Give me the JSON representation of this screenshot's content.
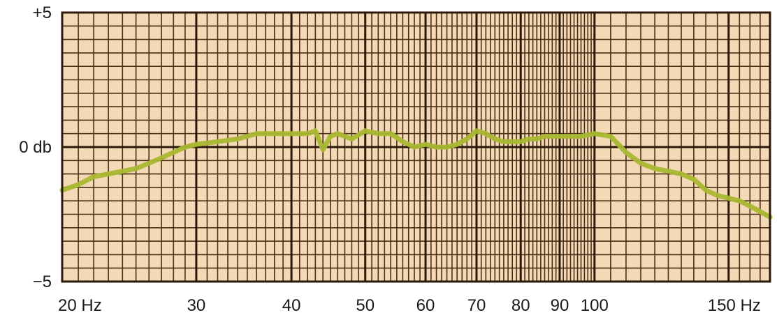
{
  "chart_data": {
    "type": "line",
    "title": "",
    "xlabel": "",
    "ylabel": "",
    "x_scale": "log",
    "xlim": [
      20,
      170
    ],
    "ylim": [
      -5,
      5
    ],
    "grid": true,
    "legend": "none",
    "x_tick_labels": [
      {
        "value": 20,
        "label": "20 Hz"
      },
      {
        "value": 30,
        "label": "30"
      },
      {
        "value": 40,
        "label": "40"
      },
      {
        "value": 50,
        "label": "50"
      },
      {
        "value": 60,
        "label": "60"
      },
      {
        "value": 70,
        "label": "70"
      },
      {
        "value": 80,
        "label": "80"
      },
      {
        "value": 90,
        "label": "90"
      },
      {
        "value": 100,
        "label": "100"
      },
      {
        "value": 150,
        "label": "150 Hz"
      }
    ],
    "y_tick_labels": [
      {
        "value": 5,
        "label": "+5"
      },
      {
        "value": 0,
        "label": "0 db"
      },
      {
        "value": -5,
        "label": "−5"
      }
    ],
    "series": [
      {
        "color": "#a9b832",
        "x": [
          20,
          21,
          22,
          23,
          24,
          25,
          26,
          27,
          28,
          29,
          30,
          32,
          34,
          36,
          38,
          40,
          42,
          43,
          44,
          45,
          46,
          48,
          50,
          52,
          54,
          56,
          58,
          60,
          62,
          64,
          66,
          68,
          70,
          72,
          74,
          76,
          78,
          80,
          82,
          84,
          86,
          88,
          90,
          93,
          96,
          100,
          105,
          110,
          115,
          120,
          125,
          130,
          135,
          140,
          145,
          150,
          155,
          160,
          165,
          170
        ],
        "y": [
          -1.6,
          -1.4,
          -1.1,
          -1.0,
          -0.9,
          -0.8,
          -0.6,
          -0.4,
          -0.2,
          0.0,
          0.1,
          0.2,
          0.3,
          0.5,
          0.5,
          0.5,
          0.5,
          0.6,
          -0.1,
          0.4,
          0.5,
          0.3,
          0.6,
          0.5,
          0.5,
          0.2,
          0.0,
          0.1,
          0.0,
          0.0,
          0.1,
          0.3,
          0.6,
          0.5,
          0.3,
          0.2,
          0.2,
          0.2,
          0.3,
          0.3,
          0.4,
          0.4,
          0.4,
          0.4,
          0.4,
          0.5,
          0.4,
          -0.2,
          -0.6,
          -0.8,
          -0.9,
          -1.0,
          -1.2,
          -1.6,
          -1.8,
          -1.9,
          -2.0,
          -2.2,
          -2.4,
          -2.6
        ]
      }
    ],
    "colors": {
      "paper": "#f3d9b5",
      "major_grid": "#2a1808",
      "minor_grid": "#4a2e16",
      "curve": "#a9b832",
      "text": "#1a1a1a"
    }
  }
}
